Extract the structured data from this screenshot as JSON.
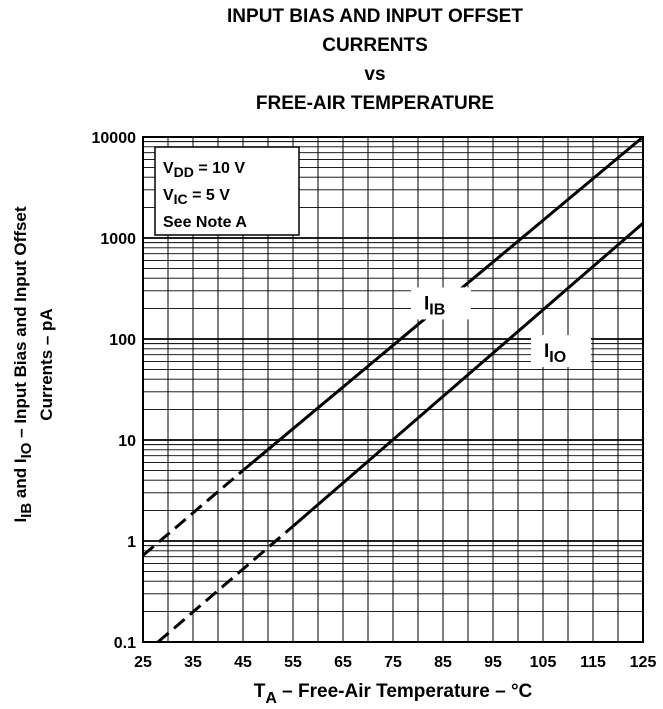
{
  "chart_data": {
    "type": "line",
    "title_lines": [
      "INPUT BIAS AND INPUT OFFSET",
      "CURRENTS",
      "vs",
      "FREE-AIR TEMPERATURE"
    ],
    "xlabel": {
      "main": "T",
      "sub": "A",
      "rest": " – Free-Air Temperature – °C"
    },
    "ylabel": {
      "p1": "I",
      "s1": "IB",
      "p2": " and I",
      "s2": "IO",
      "p3": " – Input Bias and Input Offset",
      "line2": "Currents – pA"
    },
    "x_ticks": [
      "25",
      "35",
      "45",
      "55",
      "65",
      "75",
      "85",
      "95",
      "105",
      "115",
      "125"
    ],
    "y_ticks": [
      "0.1",
      "1",
      "10",
      "100",
      "1000",
      "10000"
    ],
    "xlim": [
      25,
      125
    ],
    "ylim": [
      0.1,
      10000
    ],
    "y_scale": "log",
    "grid": true,
    "conditions": [
      {
        "main": "V",
        "sub": "DD",
        "rest": " = 10 V"
      },
      {
        "main": "V",
        "sub": "IC",
        "rest": " = 5 V"
      },
      {
        "main": "See Note A",
        "sub": "",
        "rest": ""
      }
    ],
    "series": [
      {
        "name": "IB",
        "label_main": "I",
        "label_sub": "IB",
        "x": [
          25,
          45,
          125
        ],
        "y": [
          0.72,
          5.0,
          10000
        ],
        "dashed_until_x": 45
      },
      {
        "name": "IO",
        "label_main": "I",
        "label_sub": "IO",
        "x": [
          28,
          55,
          125
        ],
        "y": [
          0.1,
          1.4,
          1400
        ],
        "dashed_until_x": 55
      }
    ]
  }
}
